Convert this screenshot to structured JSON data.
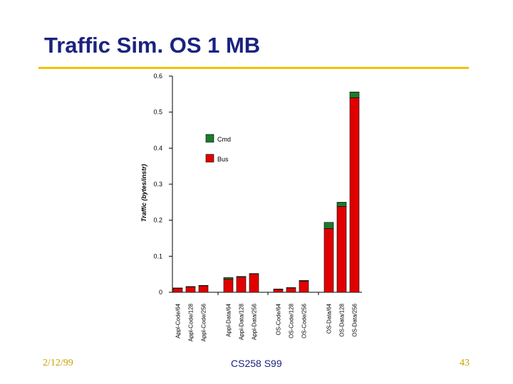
{
  "slide": {
    "title": "Traffic Sim. OS 1 MB",
    "date": "2/12/99",
    "course": "CS258 S99",
    "page": "43"
  },
  "colors": {
    "cmd": "#1b7a2e",
    "bus": "#e00000",
    "title": "#1a237e",
    "rule": "#f2c200"
  },
  "chart_data": {
    "type": "bar",
    "stacked": true,
    "ylabel": "Traffic (bytes/instr)",
    "ylim": [
      0,
      0.6
    ],
    "yticks": [
      "0",
      "0.1",
      "0.2",
      "0.3",
      "0.4",
      "0.5",
      "0.6"
    ],
    "legend": "upper-center",
    "categories": [
      "Appl-Code/64",
      "Appl-Code/128",
      "Appl-Code/256",
      "Appl-Data/64",
      "Appl-Data/128",
      "Appl-Data/256",
      "OS-Code/64",
      "OS-Code/128",
      "OS-Code/256",
      "OS-Data/64",
      "OS-Data/128",
      "OS-Data/256"
    ],
    "groups": [
      3,
      3,
      3,
      3
    ],
    "series": [
      {
        "name": "Bus",
        "values": [
          0.011,
          0.015,
          0.018,
          0.036,
          0.042,
          0.051,
          0.008,
          0.012,
          0.031,
          0.177,
          0.238,
          0.54
        ]
      },
      {
        "name": "Cmd",
        "values": [
          0.001,
          0.001,
          0.001,
          0.005,
          0.002,
          0.001,
          0.001,
          0.001,
          0.002,
          0.017,
          0.012,
          0.016
        ]
      }
    ]
  }
}
